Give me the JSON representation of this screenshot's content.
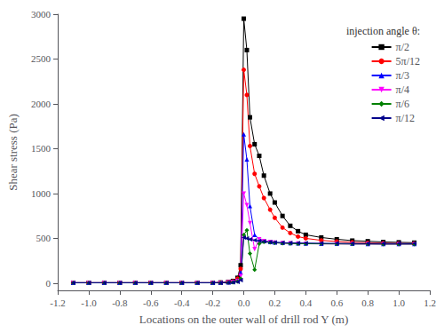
{
  "chart_data": {
    "type": "line",
    "xlabel": "Locations on the outer wall of drill rod Y (m)",
    "ylabel": "Shear stress (Pa)",
    "legend_title": "injection angle θ:",
    "legend": "upper right",
    "grid": false,
    "xlim": [
      -1.2,
      1.2
    ],
    "ylim": [
      -80,
      3000
    ],
    "xticks": [
      -1.2,
      {
        "value": -1,
        "label": "-1.0"
      },
      -0.8,
      -0.6,
      -0.4,
      -0.2,
      {
        "value": 0,
        "label": "0.0"
      },
      0.2,
      0.4,
      0.6,
      0.8,
      {
        "value": 1,
        "label": "1.0"
      },
      1.2
    ],
    "yticks": [
      0,
      500,
      1000,
      1500,
      2000,
      2500,
      3000
    ],
    "x": [
      -1.1,
      -1.0,
      -0.9,
      -0.8,
      -0.7,
      -0.6,
      -0.5,
      -0.4,
      -0.3,
      -0.2,
      -0.15,
      -0.1,
      -0.07,
      -0.04,
      -0.02,
      0.0,
      0.02,
      0.04,
      0.07,
      0.1,
      0.13,
      0.17,
      0.2,
      0.25,
      0.3,
      0.35,
      0.4,
      0.5,
      0.6,
      0.7,
      0.8,
      0.9,
      1.0,
      1.1
    ],
    "series": [
      {
        "name": "π/2",
        "color": "black",
        "marker": "square",
        "values": [
          5,
          5,
          5,
          5,
          5,
          5,
          5,
          5,
          5,
          5,
          8,
          15,
          25,
          60,
          200,
          2950,
          2600,
          1850,
          1550,
          1420,
          1200,
          1000,
          900,
          750,
          640,
          580,
          540,
          510,
          490,
          475,
          468,
          460,
          456,
          452
        ]
      },
      {
        "name": "5π/12",
        "color": "red",
        "marker": "circle",
        "values": [
          5,
          5,
          5,
          5,
          5,
          5,
          5,
          5,
          5,
          5,
          7,
          12,
          20,
          50,
          160,
          2380,
          2100,
          1530,
          1220,
          1080,
          950,
          820,
          730,
          620,
          560,
          520,
          500,
          478,
          465,
          456,
          450,
          446,
          443,
          441
        ]
      },
      {
        "name": "π/3",
        "color": "blue",
        "marker": "triangle-up",
        "values": [
          5,
          5,
          5,
          5,
          5,
          5,
          5,
          5,
          5,
          5,
          6,
          10,
          15,
          35,
          120,
          1660,
          1380,
          860,
          540,
          490,
          470,
          460,
          455,
          450,
          447,
          445,
          443,
          441,
          440,
          439,
          438,
          437,
          437,
          437
        ]
      },
      {
        "name": "π/4",
        "color": "magenta",
        "marker": "triangle-down",
        "values": [
          5,
          5,
          5,
          5,
          5,
          5,
          5,
          5,
          5,
          5,
          5,
          8,
          12,
          25,
          80,
          1000,
          870,
          670,
          380,
          490,
          470,
          460,
          452,
          447,
          444,
          442,
          440,
          439,
          438,
          437,
          437,
          436,
          436,
          436
        ]
      },
      {
        "name": "π/6",
        "color": "green",
        "marker": "diamond",
        "values": [
          5,
          5,
          5,
          5,
          5,
          5,
          5,
          5,
          5,
          5,
          5,
          7,
          10,
          18,
          50,
          540,
          590,
          330,
          150,
          440,
          460,
          455,
          450,
          446,
          443,
          441,
          440,
          439,
          438,
          437,
          437,
          436,
          436,
          436
        ]
      },
      {
        "name": "π/12",
        "color": "#00008B",
        "marker": "triangle-left",
        "values": [
          5,
          5,
          5,
          5,
          5,
          5,
          5,
          5,
          5,
          5,
          5,
          6,
          8,
          14,
          35,
          510,
          500,
          490,
          480,
          472,
          466,
          460,
          456,
          452,
          450,
          448,
          447,
          445,
          444,
          443,
          443,
          442,
          442,
          442
        ]
      }
    ]
  }
}
